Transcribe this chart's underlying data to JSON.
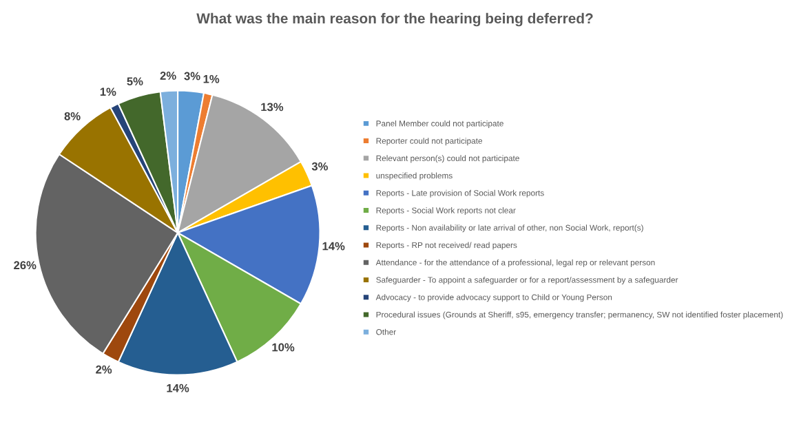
{
  "chart_data": {
    "type": "pie",
    "title": "What was the main reason for the hearing being deferred?",
    "categories": [
      "Panel Member could not participate",
      "Reporter could not participate",
      "Relevant person(s) could not participate",
      "unspecified problems",
      "Reports - Late provision of Social Work reports",
      "Reports - Social Work reports not clear",
      "Reports - Non availability or late arrival of other, non Social Work, report(s)",
      "Reports - RP not received/ read papers",
      "Attendance - for the attendance of a professional, legal rep or relevant person",
      "Safeguarder - To appoint a safeguarder or for a report/assessment by a safeguarder",
      "Advocacy - to provide advocacy support to Child or Young Person",
      "Procedural issues (Grounds at Sheriff, s95, emergency transfer; permanency, SW not identified foster placement)",
      "Other"
    ],
    "values": [
      3,
      1,
      13,
      3,
      14,
      10,
      14,
      2,
      26,
      8,
      1,
      5,
      2
    ],
    "value_labels": [
      "3%",
      "1%",
      "13%",
      "3%",
      "14%",
      "10%",
      "14%",
      "2%",
      "26%",
      "8%",
      "1%",
      "5%",
      "2%"
    ],
    "colors": [
      "#5b9bd5",
      "#ed7d31",
      "#a5a5a5",
      "#ffc000",
      "#4472c4",
      "#70ad47",
      "#255e91",
      "#9e480e",
      "#636363",
      "#997300",
      "#264478",
      "#43682b",
      "#7cafdd"
    ],
    "legend": "right"
  }
}
